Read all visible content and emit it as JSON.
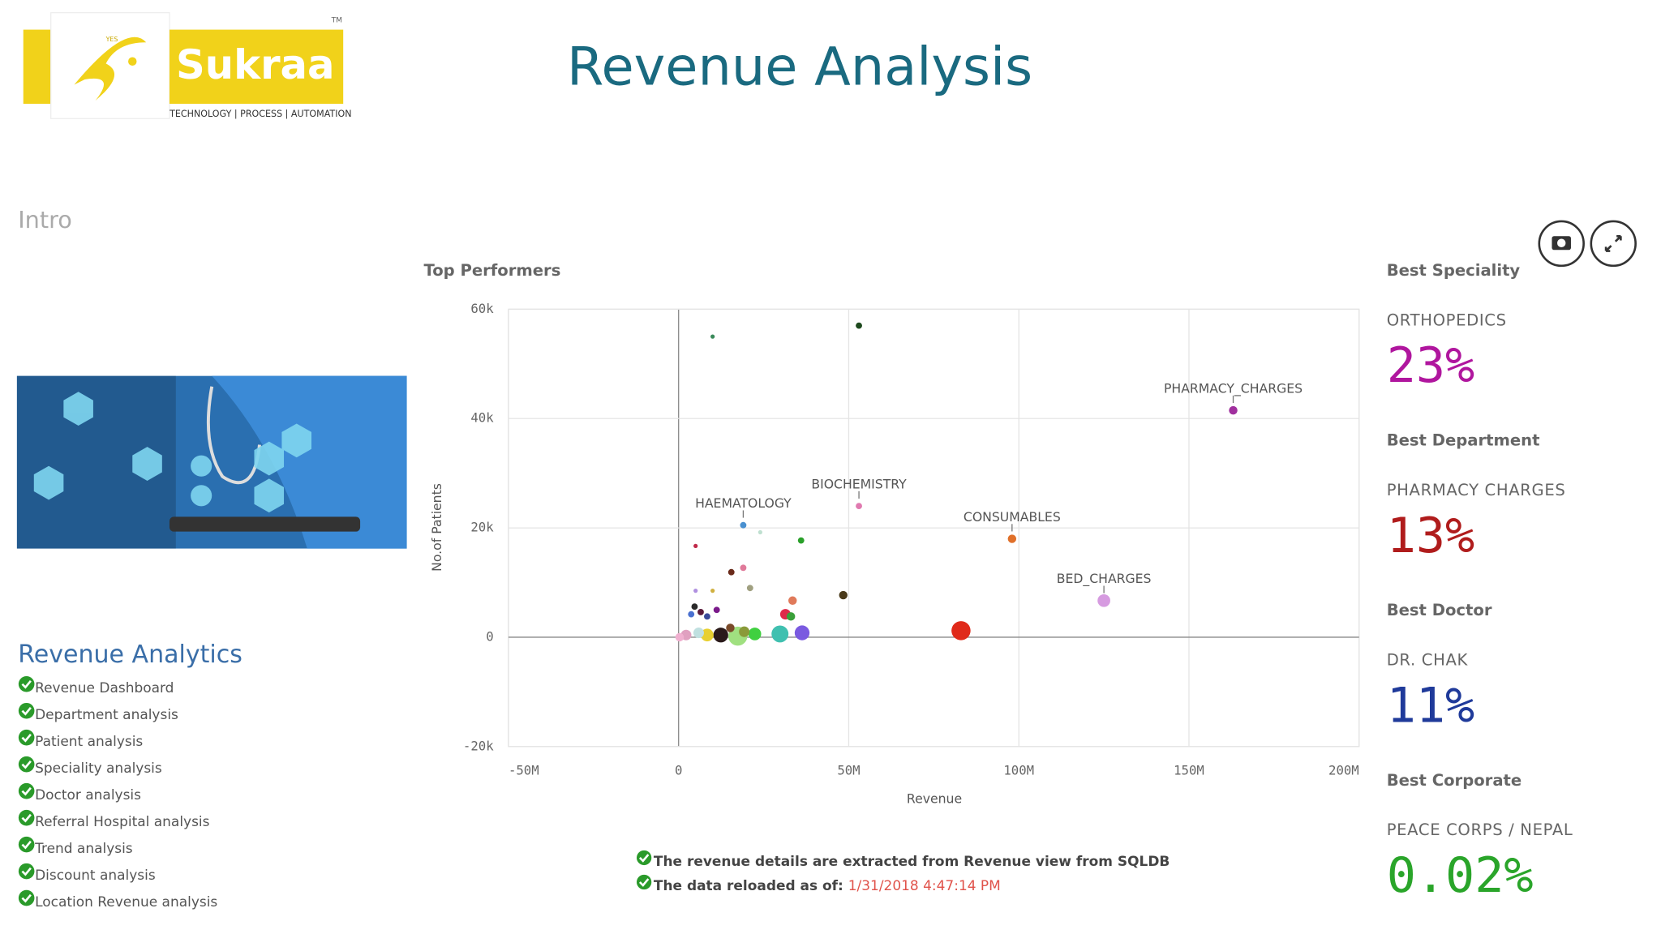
{
  "header": {
    "title": "Revenue Analysis",
    "logo": {
      "name": "Sukraa",
      "tagline": "TECHNOLOGY | PROCESS | AUTOMATION",
      "trademark": "TM",
      "badge": "YES"
    }
  },
  "sidebar": {
    "intro": "Intro",
    "section_title": "Revenue Analytics",
    "items": [
      "Revenue Dashboard",
      "Department analysis",
      "Patient analysis",
      "Speciality analysis",
      "Doctor analysis",
      "Referral Hospital analysis",
      "Trend analysis",
      "Discount analysis",
      "Location Revenue analysis"
    ]
  },
  "chart_data": {
    "type": "scatter",
    "title": "Top Performers",
    "x_label": "Revenue",
    "y_label": "No.of Patients",
    "xlim": [
      -50000000,
      200000000
    ],
    "xticks": [
      {
        "value": -50000000,
        "label": "-50M"
      },
      0,
      {
        "value": 50000000,
        "label": "50M"
      },
      {
        "value": 100000000,
        "label": "100M"
      },
      {
        "value": 150000000,
        "label": "150M"
      },
      {
        "value": 200000000,
        "label": "200M"
      }
    ],
    "ylim": [
      -20000,
      60000
    ],
    "yticks": [
      {
        "value": -20000,
        "label": "-20k"
      },
      0,
      {
        "value": 20000,
        "label": "20k"
      },
      {
        "value": 40000,
        "label": "40k"
      },
      {
        "value": 60000,
        "label": "60k"
      }
    ],
    "grid": true,
    "x": [
      163000000,
      53000000,
      19000000,
      98000000,
      125000000,
      83000000,
      53000000,
      10000000,
      36000000,
      24000000,
      5000000,
      19000000,
      15500000,
      21000000,
      5000000,
      10000000,
      48400000,
      33500000,
      31400000,
      33000000,
      4700000,
      6500000,
      8400000,
      11200000,
      3700000,
      36300000,
      29800000,
      22400000,
      17400000,
      12400000,
      8400000,
      5900000,
      2200000,
      300000,
      19300000,
      15200000
    ],
    "values": [
      41500,
      24000,
      20500,
      18000,
      6700,
      1200,
      57000,
      55000,
      17700,
      19200,
      16700,
      12700,
      11900,
      9000,
      8500,
      8500,
      7700,
      6700,
      4200,
      3800,
      5600,
      4600,
      3800,
      5000,
      4200,
      800,
      600,
      600,
      200,
      400,
      400,
      800,
      400,
      0,
      1000,
      1700
    ],
    "sizes": [
      4,
      3,
      3,
      4,
      6,
      9,
      3,
      2,
      3,
      2,
      2,
      3,
      3,
      3,
      2,
      2,
      4,
      4,
      5,
      4,
      3,
      3,
      3,
      3,
      3,
      7,
      8,
      6,
      9,
      7,
      6,
      5,
      5,
      4,
      5,
      4
    ],
    "colors": [
      "#a0309e",
      "#e07ab0",
      "#4a90d0",
      "#e0702a",
      "#d69be0",
      "#e02a1a",
      "#1e4a1e",
      "#3a8a5a",
      "#2aa02a",
      "#bfe0d0",
      "#c02a4a",
      "#e07a9a",
      "#6a2a1a",
      "#a0a080",
      "#b090e0",
      "#d0b040",
      "#4a3a1a",
      "#e07a5a",
      "#e02a4a",
      "#3aa03a",
      "#2a2a2a",
      "#5a1a3a",
      "#3a4a9a",
      "#7a1a8a",
      "#4a70d0",
      "#7a5ae0",
      "#40c0b0",
      "#40d040",
      "#a0e080",
      "#2a1a1a",
      "#e8d030",
      "#c0e0e0",
      "#e0a0c0",
      "#f0b0d0",
      "#8a9a3a",
      "#7a4a2a"
    ],
    "point_labels": [
      "PHARMACY_CHARGES",
      "BIOCHEMISTRY",
      "HAEMATOLOGY",
      "CONSUMABLES",
      "BED_CHARGES",
      null,
      null,
      null,
      null,
      null,
      null,
      null,
      null,
      null,
      null,
      null,
      null,
      null,
      null,
      null,
      null,
      null,
      null,
      null,
      null,
      null,
      null,
      null,
      null,
      null,
      null,
      null,
      null,
      null,
      null,
      null
    ]
  },
  "notes": {
    "source": "The revenue details are extracted from Revenue view from SQLDB",
    "reload_label": "The data reloaded as of: ",
    "reload_time": "1/31/2018 4:47:14 PM"
  },
  "kpis": [
    {
      "title": "Best Speciality",
      "name": "ORTHOPEDICS",
      "value": "23%"
    },
    {
      "title": "Best Department",
      "name": "PHARMACY CHARGES",
      "value": "13%"
    },
    {
      "title": "Best Doctor",
      "name": "DR. CHAK",
      "value": "11%"
    },
    {
      "title": "Best Corporate",
      "name": "PEACE CORPS / NEPAL",
      "value": "0.02%"
    }
  ]
}
